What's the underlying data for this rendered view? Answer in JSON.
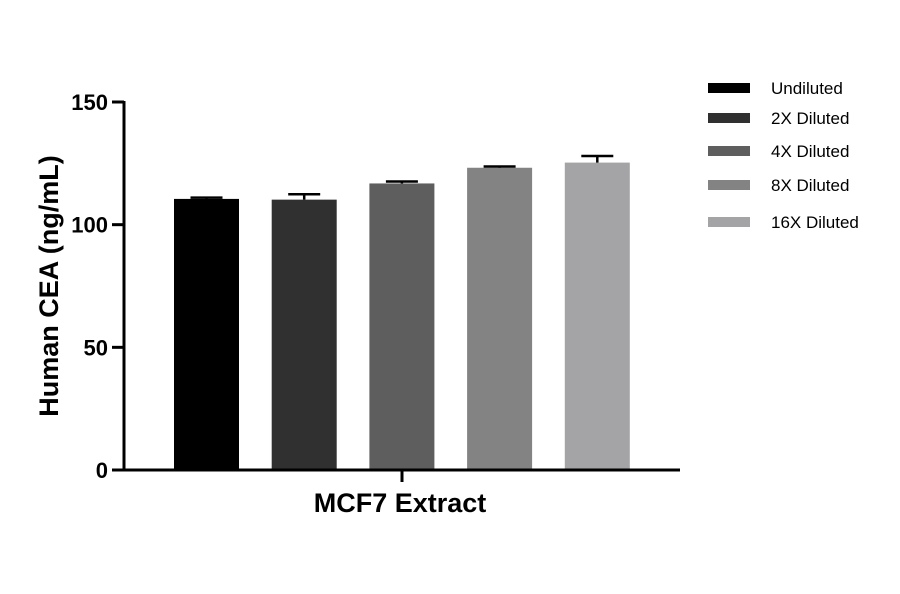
{
  "chart_data": {
    "type": "bar",
    "xlabel": "MCF7 Extract",
    "ylabel": "Human CEA (ng/mL)",
    "ylim": [
      0,
      150
    ],
    "yticks": [
      0,
      50,
      100,
      150
    ],
    "grid": false,
    "legend_position": "right",
    "categories": [
      "MCF7 Extract"
    ],
    "series": [
      {
        "name": "Undiluted",
        "value": 110.5,
        "error": 0.5,
        "color": "#000000"
      },
      {
        "name": "2X Diluted",
        "value": 110.2,
        "error": 2.2,
        "color": "#303030"
      },
      {
        "name": "4X Diluted",
        "value": 116.8,
        "error": 0.8,
        "color": "#5e5e5e"
      },
      {
        "name": "8X Diluted",
        "value": 123.2,
        "error": 0.5,
        "color": "#838383"
      },
      {
        "name": "16X Diluted",
        "value": 125.3,
        "error": 2.7,
        "color": "#a4a4a6"
      }
    ]
  }
}
